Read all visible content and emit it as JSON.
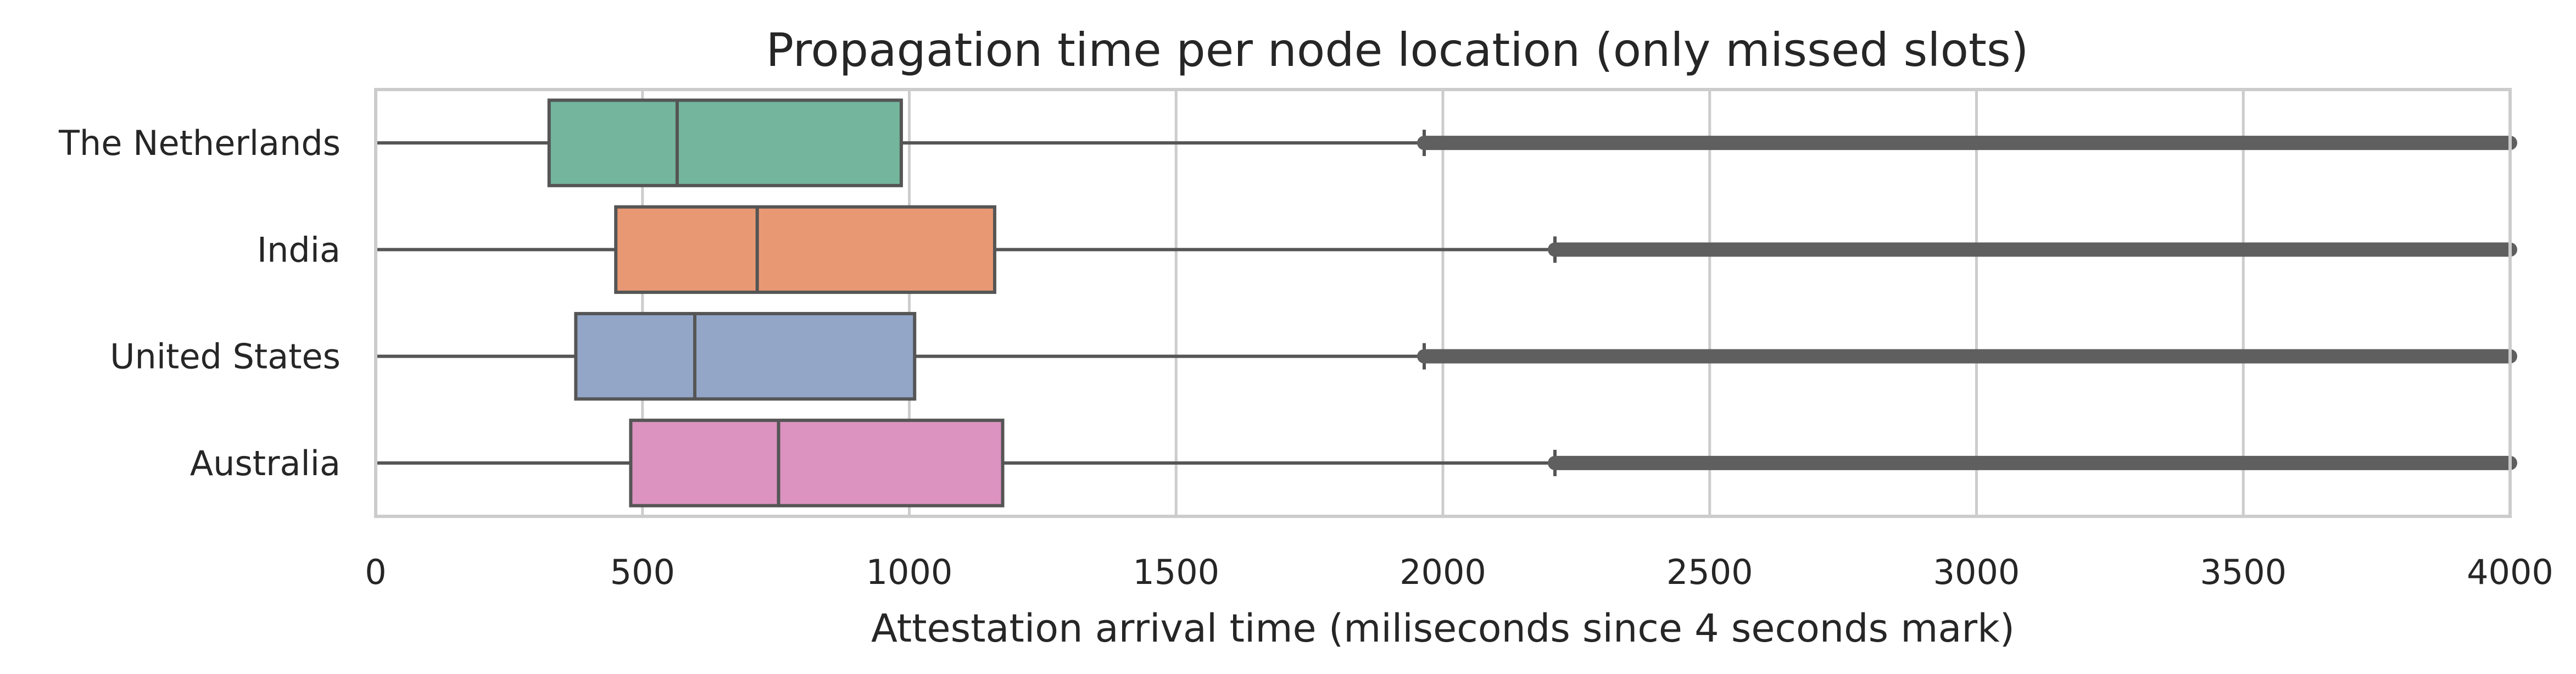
{
  "chart_data": {
    "type": "boxplot",
    "orientation": "horizontal",
    "title": "Propagation time per node location (only missed slots)",
    "xlabel": "Attestation arrival time (miliseconds since 4 seconds mark)",
    "ylabel": "",
    "xlim": [
      0,
      4000
    ],
    "xticks": [
      0,
      500,
      1000,
      1500,
      2000,
      2500,
      3000,
      3500,
      4000
    ],
    "grid": "vertical",
    "colors": {
      "whisker": "#555555",
      "outlier": "#5f5f5f",
      "grid": "#cccccc",
      "frame": "#cccccc"
    },
    "categories": [
      "The Netherlands",
      "India",
      "United States",
      "Australia"
    ],
    "boxes": [
      {
        "label": "The Netherlands",
        "min": 0,
        "q1": 325,
        "median": 565,
        "q3": 985,
        "max": 1965,
        "outliers_from": 1965,
        "outliers_to": 4000,
        "color": "#73b59d"
      },
      {
        "label": "India",
        "min": 0,
        "q1": 450,
        "median": 715,
        "q3": 1160,
        "max": 2210,
        "outliers_from": 2210,
        "outliers_to": 4000,
        "color": "#e89974"
      },
      {
        "label": "United States",
        "min": 0,
        "q1": 375,
        "median": 598,
        "q3": 1010,
        "max": 1965,
        "outliers_from": 1965,
        "outliers_to": 4000,
        "color": "#93a6c8"
      },
      {
        "label": "Australia",
        "min": 0,
        "q1": 478,
        "median": 755,
        "q3": 1175,
        "max": 2210,
        "outliers_from": 2210,
        "outliers_to": 4000,
        "color": "#dc93c0"
      }
    ]
  }
}
